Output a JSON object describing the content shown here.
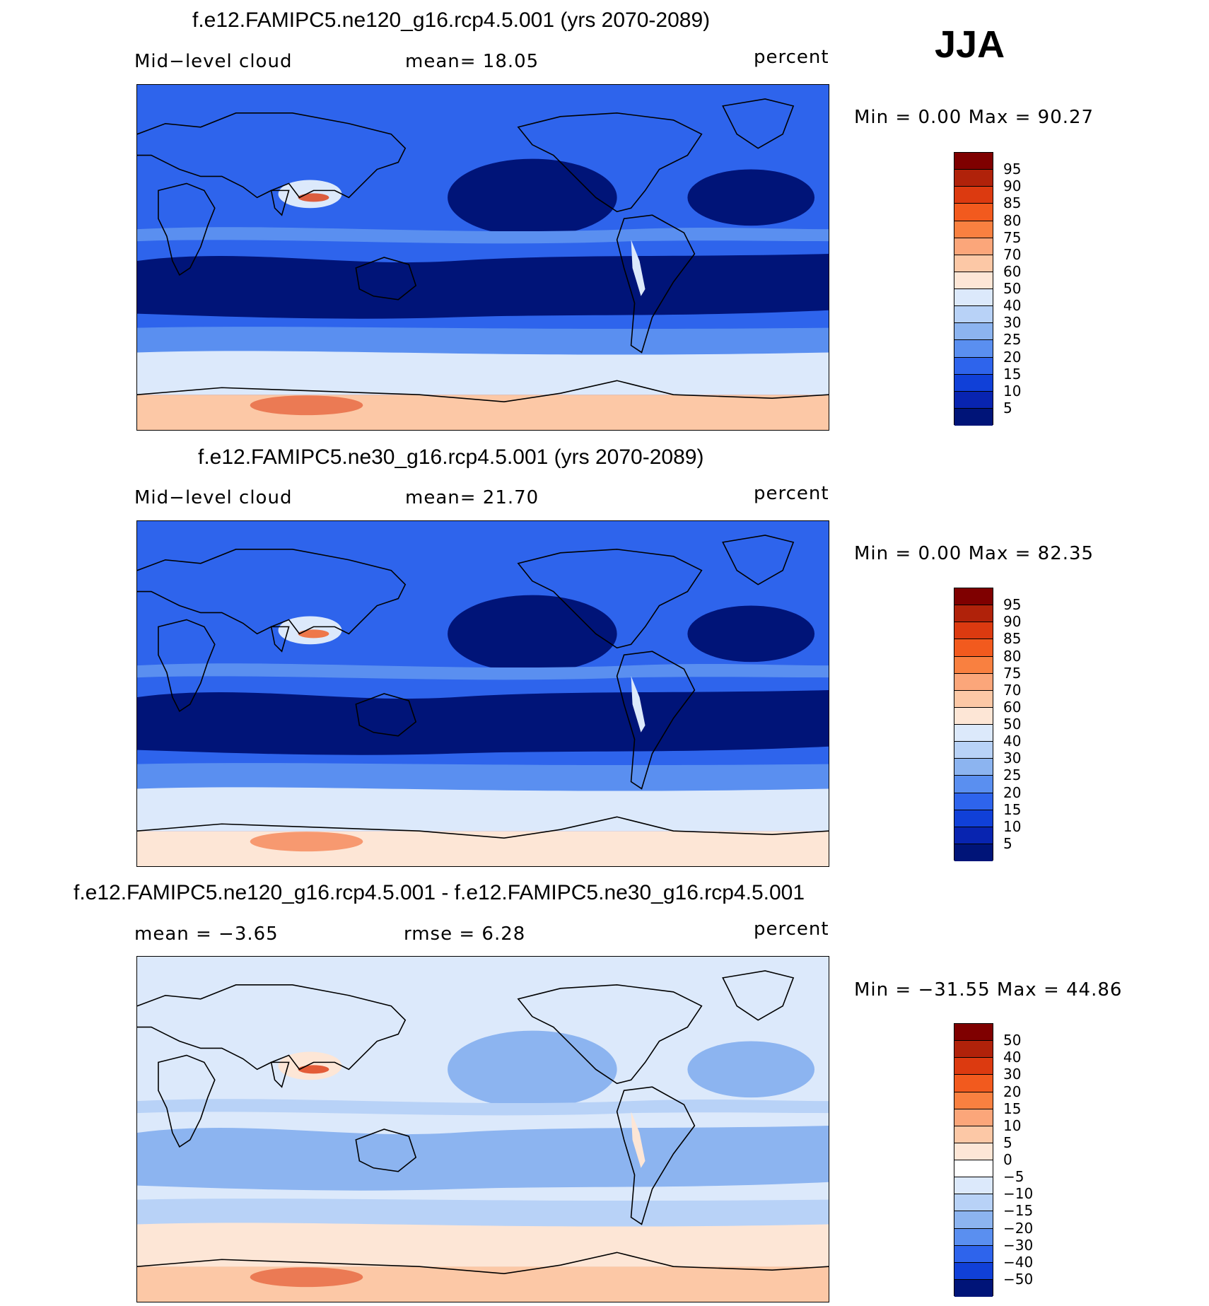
{
  "season": "JJA",
  "panels": [
    {
      "title": "f.e12.FAMIPC5.ne120_g16.rcp4.5.001 (yrs 2070-2089)",
      "left_label": "Mid−level cloud",
      "middle_label": "mean=   18.05",
      "units": "percent",
      "minmax": "Min =    0.00 Max =   90.27",
      "colorbar": {
        "labels": [
          "95",
          "90",
          "85",
          "80",
          "75",
          "70",
          "60",
          "50",
          "40",
          "30",
          "25",
          "20",
          "15",
          "10",
          "5"
        ],
        "colors": [
          "#7f0000",
          "#b0220a",
          "#dc3a10",
          "#f25a1e",
          "#f98040",
          "#fba67a",
          "#fcc8a6",
          "#fde6d6",
          "#dce9fb",
          "#b8d2f7",
          "#8cb4f0",
          "#5a8ff0",
          "#2e64ec",
          "#1040d8",
          "#0824b0",
          "#001478"
        ]
      },
      "map_colors": {
        "ocean": "#2e64ec",
        "low": "#001478",
        "mid": "#5a8ff0",
        "high": "#dce9fb",
        "peak": "#fcc8a6",
        "max": "#dc3a10"
      }
    },
    {
      "title": "f.e12.FAMIPC5.ne30_g16.rcp4.5.001 (yrs 2070-2089)",
      "left_label": "Mid−level cloud",
      "middle_label": "mean=   21.70",
      "units": "percent",
      "minmax": "Min =    0.00 Max =   82.35",
      "colorbar": {
        "labels": [
          "95",
          "90",
          "85",
          "80",
          "75",
          "70",
          "60",
          "50",
          "40",
          "30",
          "25",
          "20",
          "15",
          "10",
          "5"
        ],
        "colors": [
          "#7f0000",
          "#b0220a",
          "#dc3a10",
          "#f25a1e",
          "#f98040",
          "#fba67a",
          "#fcc8a6",
          "#fde6d6",
          "#dce9fb",
          "#b8d2f7",
          "#8cb4f0",
          "#5a8ff0",
          "#2e64ec",
          "#1040d8",
          "#0824b0",
          "#001478"
        ]
      },
      "map_colors": {
        "ocean": "#2e64ec",
        "low": "#001478",
        "mid": "#5a8ff0",
        "high": "#dce9fb",
        "peak": "#fde6d6",
        "max": "#f25a1e"
      }
    },
    {
      "title": "f.e12.FAMIPC5.ne120_g16.rcp4.5.001 - f.e12.FAMIPC5.ne30_g16.rcp4.5.001",
      "left_label": "mean =   −3.65",
      "middle_label": "rmse =    6.28",
      "units": "percent",
      "minmax": "Min = −31.55 Max =   44.86",
      "colorbar": {
        "labels": [
          "50",
          "40",
          "30",
          "20",
          "15",
          "10",
          "5",
          "0",
          "−5",
          "−10",
          "−15",
          "−20",
          "−30",
          "−40",
          "−50"
        ],
        "colors": [
          "#7f0000",
          "#b0220a",
          "#dc3a10",
          "#f25a1e",
          "#f98040",
          "#fba67a",
          "#fcc8a6",
          "#fde6d6",
          "#ffffff",
          "#dce9fb",
          "#b8d2f7",
          "#8cb4f0",
          "#5a8ff0",
          "#2e64ec",
          "#1040d8",
          "#001478"
        ]
      },
      "map_colors": {
        "ocean": "#dce9fb",
        "low": "#8cb4f0",
        "mid": "#b8d2f7",
        "high": "#fde6d6",
        "peak": "#fcc8a6",
        "max": "#dc3a10"
      }
    }
  ]
}
